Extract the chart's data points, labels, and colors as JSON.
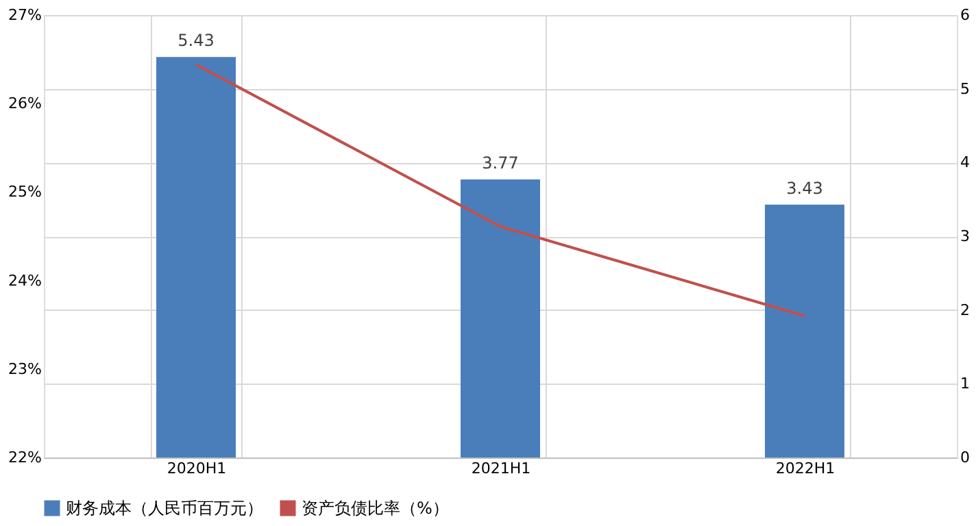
{
  "chart_data": {
    "type": "bar",
    "categories": [
      "2020H1",
      "2021H1",
      "2022H1"
    ],
    "series": [
      {
        "name": "财务成本（人民币百万元）",
        "axis": "y2",
        "color": "#4a7ebb",
        "values": [
          5.43,
          3.77,
          3.43
        ],
        "value_labels": [
          "5.43",
          "3.77",
          "3.43"
        ]
      },
      {
        "name": "资产负债比率（%）",
        "type": "line",
        "axis": "y",
        "color": "#c0504d",
        "values": [
          26.44,
          24.61,
          23.6
        ]
      }
    ],
    "ylim": [
      22,
      27
    ],
    "yticks": [
      {
        "value": 22,
        "label": "22%"
      },
      {
        "value": 23,
        "label": "23%"
      },
      {
        "value": 24,
        "label": "24%"
      },
      {
        "value": 25,
        "label": "25%"
      },
      {
        "value": 26,
        "label": "26%"
      },
      {
        "value": 27,
        "label": "27%"
      }
    ],
    "y2lim": [
      0,
      6
    ],
    "y2ticks": [
      0,
      1,
      2,
      3,
      4,
      5,
      6
    ],
    "grid": true,
    "legend": "bottom",
    "marker": "none",
    "line_style": "solid"
  }
}
